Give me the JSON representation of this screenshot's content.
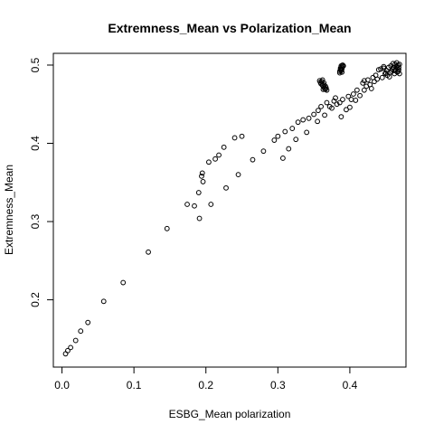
{
  "chart_data": {
    "type": "scatter",
    "title": "Extremness_Mean vs Polarization_Mean",
    "xlabel": "ESBG_Mean polarization",
    "ylabel": "Extremness_Mean",
    "xlim": [
      -0.012,
      0.478
    ],
    "ylim": [
      0.114,
      0.515
    ],
    "xticks": [
      0.0,
      0.1,
      0.2,
      0.3,
      0.4
    ],
    "xtick_labels": [
      "0.0",
      "0.1",
      "0.2",
      "0.3",
      "0.4"
    ],
    "yticks": [
      0.2,
      0.3,
      0.4,
      0.5
    ],
    "ytick_labels": [
      "0.2",
      "0.3",
      "0.4",
      "0.5"
    ],
    "grid": false,
    "marker": "open-circle",
    "points": [
      [
        0.005,
        0.131
      ],
      [
        0.008,
        0.135
      ],
      [
        0.012,
        0.139
      ],
      [
        0.019,
        0.148
      ],
      [
        0.026,
        0.16
      ],
      [
        0.036,
        0.171
      ],
      [
        0.058,
        0.198
      ],
      [
        0.085,
        0.222
      ],
      [
        0.12,
        0.261
      ],
      [
        0.146,
        0.291
      ],
      [
        0.174,
        0.322
      ],
      [
        0.184,
        0.32
      ],
      [
        0.19,
        0.337
      ],
      [
        0.191,
        0.304
      ],
      [
        0.194,
        0.358
      ],
      [
        0.195,
        0.362
      ],
      [
        0.196,
        0.351
      ],
      [
        0.204,
        0.376
      ],
      [
        0.207,
        0.322
      ],
      [
        0.213,
        0.38
      ],
      [
        0.218,
        0.385
      ],
      [
        0.225,
        0.395
      ],
      [
        0.228,
        0.343
      ],
      [
        0.24,
        0.407
      ],
      [
        0.245,
        0.36
      ],
      [
        0.25,
        0.409
      ],
      [
        0.265,
        0.379
      ],
      [
        0.28,
        0.39
      ],
      [
        0.295,
        0.404
      ],
      [
        0.3,
        0.409
      ],
      [
        0.307,
        0.381
      ],
      [
        0.31,
        0.415
      ],
      [
        0.315,
        0.393
      ],
      [
        0.32,
        0.419
      ],
      [
        0.325,
        0.405
      ],
      [
        0.328,
        0.427
      ],
      [
        0.335,
        0.43
      ],
      [
        0.34,
        0.414
      ],
      [
        0.343,
        0.432
      ],
      [
        0.35,
        0.437
      ],
      [
        0.355,
        0.428
      ],
      [
        0.356,
        0.442
      ],
      [
        0.36,
        0.447
      ],
      [
        0.365,
        0.436
      ],
      [
        0.368,
        0.452
      ],
      [
        0.372,
        0.447
      ],
      [
        0.375,
        0.445
      ],
      [
        0.378,
        0.454
      ],
      [
        0.38,
        0.458
      ],
      [
        0.382,
        0.45
      ],
      [
        0.386,
        0.452
      ],
      [
        0.388,
        0.434
      ],
      [
        0.39,
        0.456
      ],
      [
        0.395,
        0.443
      ],
      [
        0.398,
        0.46
      ],
      [
        0.4,
        0.446
      ],
      [
        0.402,
        0.456
      ],
      [
        0.405,
        0.463
      ],
      [
        0.408,
        0.455
      ],
      [
        0.41,
        0.468
      ],
      [
        0.414,
        0.461
      ],
      [
        0.418,
        0.477
      ],
      [
        0.42,
        0.48
      ],
      [
        0.42,
        0.468
      ],
      [
        0.423,
        0.473
      ],
      [
        0.425,
        0.481
      ],
      [
        0.428,
        0.475
      ],
      [
        0.43,
        0.47
      ],
      [
        0.432,
        0.484
      ],
      [
        0.434,
        0.479
      ],
      [
        0.436,
        0.487
      ],
      [
        0.438,
        0.482
      ],
      [
        0.44,
        0.494
      ],
      [
        0.443,
        0.495
      ],
      [
        0.445,
        0.484
      ],
      [
        0.447,
        0.496
      ],
      [
        0.449,
        0.489
      ],
      [
        0.451,
        0.493
      ],
      [
        0.452,
        0.487
      ],
      [
        0.454,
        0.497
      ],
      [
        0.456,
        0.49
      ],
      [
        0.457,
        0.499
      ],
      [
        0.458,
        0.492
      ],
      [
        0.459,
        0.495
      ],
      [
        0.46,
        0.502
      ],
      [
        0.461,
        0.497
      ],
      [
        0.462,
        0.489
      ],
      [
        0.463,
        0.501
      ],
      [
        0.464,
        0.494
      ],
      [
        0.465,
        0.498
      ],
      [
        0.465,
        0.503
      ],
      [
        0.466,
        0.491
      ],
      [
        0.466,
        0.496
      ],
      [
        0.467,
        0.5
      ],
      [
        0.467,
        0.492
      ],
      [
        0.468,
        0.497
      ],
      [
        0.468,
        0.494
      ],
      [
        0.469,
        0.501
      ],
      [
        0.469,
        0.489
      ],
      [
        0.462,
        0.493
      ],
      [
        0.455,
        0.485
      ],
      [
        0.447,
        0.498
      ],
      [
        0.45,
        0.49
      ],
      [
        0.358,
        0.48
      ],
      [
        0.359,
        0.478
      ],
      [
        0.36,
        0.476
      ],
      [
        0.361,
        0.479
      ],
      [
        0.362,
        0.474
      ],
      [
        0.362,
        0.481
      ],
      [
        0.363,
        0.475
      ],
      [
        0.364,
        0.472
      ],
      [
        0.364,
        0.477
      ],
      [
        0.365,
        0.47
      ],
      [
        0.366,
        0.473
      ],
      [
        0.366,
        0.469
      ],
      [
        0.367,
        0.471
      ],
      [
        0.368,
        0.468
      ],
      [
        0.363,
        0.469
      ],
      [
        0.386,
        0.492
      ],
      [
        0.387,
        0.494
      ],
      [
        0.387,
        0.496
      ],
      [
        0.388,
        0.493
      ],
      [
        0.388,
        0.497
      ],
      [
        0.389,
        0.495
      ],
      [
        0.389,
        0.491
      ],
      [
        0.39,
        0.498
      ],
      [
        0.39,
        0.5
      ],
      [
        0.391,
        0.499
      ],
      [
        0.386,
        0.49
      ],
      [
        0.388,
        0.499
      ]
    ]
  }
}
